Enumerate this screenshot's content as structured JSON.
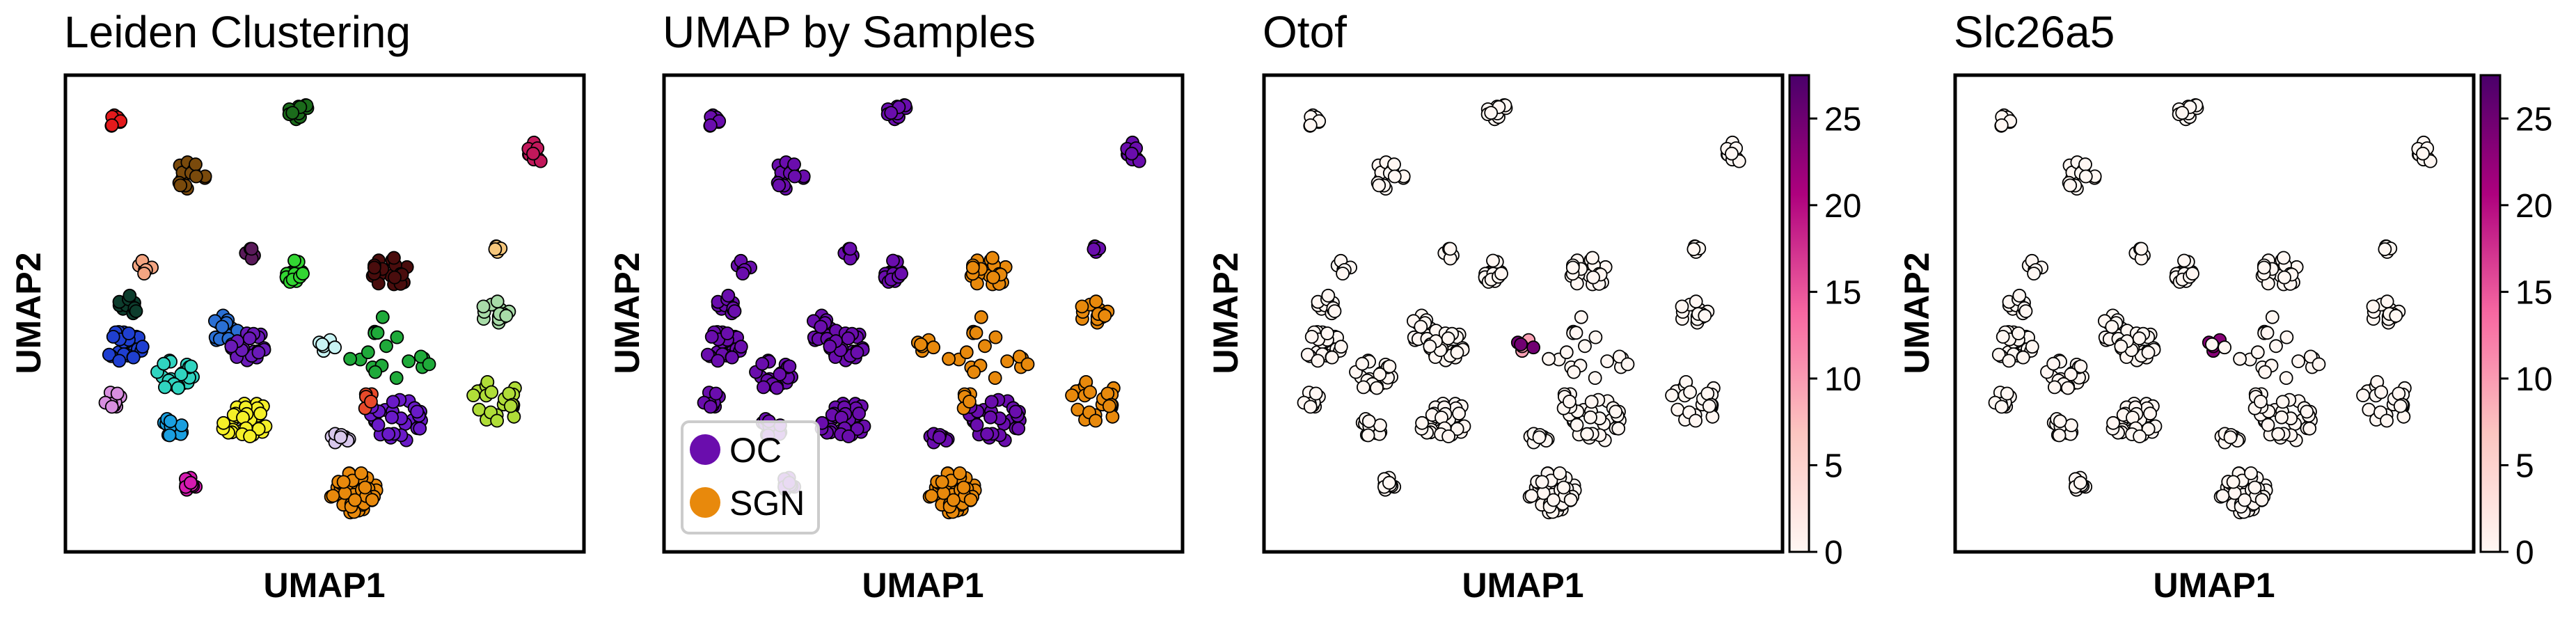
{
  "chart_data": [
    {
      "type": "scatter",
      "title": "Leiden Clustering",
      "xlabel": "UMAP1",
      "ylabel": "UMAP2",
      "grid": false,
      "color_by": "cluster",
      "xlim": [
        0,
        100
      ],
      "ylim": [
        0,
        100
      ]
    },
    {
      "type": "scatter",
      "title": "UMAP by Samples",
      "xlabel": "UMAP1",
      "ylabel": "UMAP2",
      "grid": false,
      "legend_position": "bottom-left",
      "series": [
        {
          "name": "OC",
          "color": "#6a0dad"
        },
        {
          "name": "SGN",
          "color": "#e8890c"
        }
      ],
      "xlim": [
        0,
        100
      ],
      "ylim": [
        0,
        100
      ]
    },
    {
      "type": "scatter",
      "title": "Otof",
      "xlabel": "UMAP1",
      "ylabel": "UMAP2",
      "grid": false,
      "colorbar": {
        "ticks": [
          0,
          5,
          10,
          15,
          20,
          25
        ],
        "range": [
          0,
          27.5
        ],
        "colormap": "RdPu"
      },
      "xlim": [
        0,
        100
      ],
      "ylim": [
        0,
        100
      ]
    },
    {
      "type": "scatter",
      "title": "Slc26a5",
      "xlabel": "UMAP1",
      "ylabel": "UMAP2",
      "grid": false,
      "colorbar": {
        "ticks": [
          0,
          5,
          10,
          15,
          20,
          25
        ],
        "range": [
          0,
          27.5
        ],
        "colormap": "RdPu"
      },
      "xlim": [
        0,
        100
      ],
      "ylim": [
        0,
        100
      ]
    }
  ],
  "clusters": [
    {
      "x": 8,
      "y": 92,
      "n": 9,
      "s": 1.6,
      "leiden": "#e31a1c",
      "sample": "OC"
    },
    {
      "x": 45,
      "y": 94,
      "n": 11,
      "s": 2.0,
      "leiden": "#1b6b1b",
      "sample": "OC"
    },
    {
      "x": 92,
      "y": 85,
      "n": 11,
      "s": 2.2,
      "leiden": "#c2185b",
      "sample": "OC"
    },
    {
      "x": 23,
      "y": 80,
      "n": 16,
      "s": 3.0,
      "leiden": "#7a4a0c",
      "sample": "OC"
    },
    {
      "x": 85,
      "y": 64,
      "n": 5,
      "s": 1.2,
      "leiden": "#f6c77c",
      "sample": "OC"
    },
    {
      "x": 14,
      "y": 60,
      "n": 6,
      "s": 1.5,
      "leiden": "#f4a582",
      "sample": "OC"
    },
    {
      "x": 35,
      "y": 63,
      "n": 5,
      "s": 1.3,
      "leiden": "#5a1a5a",
      "sample": "OC"
    },
    {
      "x": 44,
      "y": 59,
      "n": 16,
      "s": 2.5,
      "leiden": "#33d633",
      "sample": "OC"
    },
    {
      "x": 63,
      "y": 59,
      "n": 20,
      "s": 3.5,
      "leiden": "#4a0d0d",
      "sample": "SGN"
    },
    {
      "x": 84,
      "y": 50,
      "n": 16,
      "s": 3.0,
      "leiden": "#a8dba8",
      "sample": "SGN"
    },
    {
      "x": 11,
      "y": 52,
      "n": 12,
      "s": 2.2,
      "leiden": "#0d3d2d",
      "sample": "OC"
    },
    {
      "x": 10,
      "y": 43,
      "n": 28,
      "s": 3.5,
      "leiden": "#1f3fd0",
      "sample": "OC"
    },
    {
      "x": 30,
      "y": 47,
      "n": 20,
      "s": 3.2,
      "leiden": "#2a6fd4",
      "sample": "OC"
    },
    {
      "x": 35,
      "y": 43,
      "n": 22,
      "s": 3.5,
      "leiden": "#6a1ab8",
      "sample": "OC"
    },
    {
      "x": 20,
      "y": 37,
      "n": 25,
      "s": 3.5,
      "leiden": "#30d4c0",
      "sample": "OC"
    },
    {
      "x": 8,
      "y": 31,
      "n": 10,
      "s": 2.0,
      "leiden": "#d88fe0",
      "sample": "OC"
    },
    {
      "x": 20,
      "y": 25,
      "n": 12,
      "s": 2.5,
      "leiden": "#1a9fe0",
      "sample": "OC"
    },
    {
      "x": 34,
      "y": 27,
      "n": 30,
      "s": 4.5,
      "leiden": "#f5f028",
      "sample": "OC"
    },
    {
      "x": 23,
      "y": 13,
      "n": 9,
      "s": 1.5,
      "leiden": "#d41ab0",
      "sample": "OC"
    },
    {
      "x": 63,
      "y": 42,
      "n": 18,
      "s": 8.0,
      "leiden": "#1faa3a",
      "sample": "SGN"
    },
    {
      "x": 64,
      "y": 27,
      "n": 30,
      "s": 5.0,
      "leiden": "#6a1ac8",
      "sample": "OC"
    },
    {
      "x": 53,
      "y": 23,
      "n": 8,
      "s": 2.0,
      "leiden": "#d8c8ec",
      "sample": "OC"
    },
    {
      "x": 56,
      "y": 11,
      "n": 50,
      "s": 4.5,
      "leiden": "#e8890c",
      "sample": "SGN"
    },
    {
      "x": 84,
      "y": 31,
      "n": 24,
      "s": 5.0,
      "leiden": "#b0dd38",
      "sample": "SGN"
    },
    {
      "x": 50,
      "y": 43,
      "n": 6,
      "s": 2.0,
      "leiden": "#c8f4f4",
      "sample": "SGN"
    },
    {
      "x": 58,
      "y": 31,
      "n": 6,
      "s": 2.0,
      "leiden": "#e84a2a",
      "sample": "SGN"
    }
  ]
}
